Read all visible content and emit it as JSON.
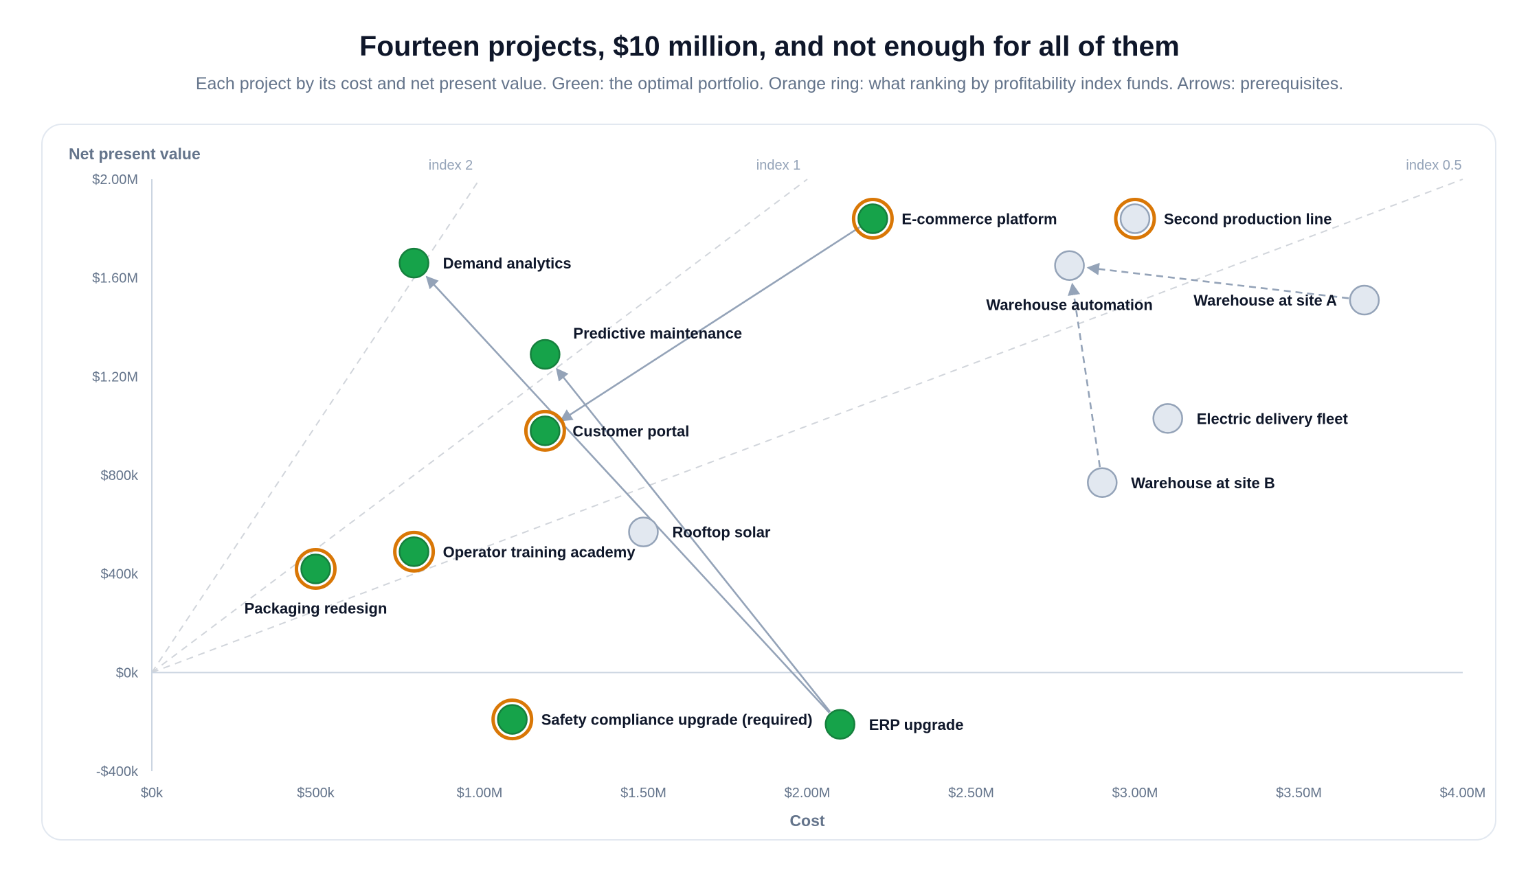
{
  "title": "Fourteen projects, $10 million, and not enough for all of them",
  "subtitle": "Each project by its cost and net present value. Green: the optimal portfolio. Orange ring: what ranking by profitability index funds. Arrows: prerequisites.",
  "colors": {
    "selected": "#16a34a",
    "selected_stroke": "#15803d",
    "unselected": "#e2e8f0",
    "unselected_stroke": "#94a3b8",
    "ring": "#d97706",
    "arrow": "#94a3b8",
    "axis_text": "#64748b",
    "guide": "#d1d5db"
  },
  "chart_data": {
    "type": "scatter",
    "xlabel": "Cost",
    "ylabel": "Net present value",
    "xlim": [
      0,
      4000000
    ],
    "ylim": [
      -400000,
      2000000
    ],
    "x_ticks": [
      {
        "value": 0,
        "label": "$0k"
      },
      {
        "value": 500000,
        "label": "$500k"
      },
      {
        "value": 1000000,
        "label": "$1.00M"
      },
      {
        "value": 1500000,
        "label": "$1.50M"
      },
      {
        "value": 2000000,
        "label": "$2.00M"
      },
      {
        "value": 2500000,
        "label": "$2.50M"
      },
      {
        "value": 3000000,
        "label": "$3.00M"
      },
      {
        "value": 3500000,
        "label": "$3.50M"
      },
      {
        "value": 4000000,
        "label": "$4.00M"
      }
    ],
    "y_ticks": [
      {
        "value": -400000,
        "label": "-$400k"
      },
      {
        "value": 0,
        "label": "$0k"
      },
      {
        "value": 400000,
        "label": "$400k"
      },
      {
        "value": 800000,
        "label": "$800k"
      },
      {
        "value": 1200000,
        "label": "$1.20M"
      },
      {
        "value": 1600000,
        "label": "$1.60M"
      },
      {
        "value": 2000000,
        "label": "$2.00M"
      }
    ],
    "index_lines": [
      {
        "ratio": 2,
        "label": "index 2"
      },
      {
        "ratio": 1,
        "label": "index 1"
      },
      {
        "ratio": 0.5,
        "label": "index 0.5"
      }
    ],
    "projects": [
      {
        "id": "packaging",
        "name": "Packaging redesign",
        "cost": 500000,
        "npv": 420000,
        "optimal": true,
        "pi_funded": true,
        "label_pos": "below"
      },
      {
        "id": "training",
        "name": "Operator training academy",
        "cost": 800000,
        "npv": 490000,
        "optimal": true,
        "pi_funded": true,
        "label_pos": "right"
      },
      {
        "id": "demand",
        "name": "Demand analytics",
        "cost": 800000,
        "npv": 1660000,
        "optimal": true,
        "pi_funded": false,
        "label_pos": "right"
      },
      {
        "id": "safety",
        "name": "Safety compliance upgrade (required)",
        "cost": 1100000,
        "npv": -190000,
        "optimal": true,
        "pi_funded": true,
        "label_pos": "right"
      },
      {
        "id": "predictive",
        "name": "Predictive maintenance",
        "cost": 1200000,
        "npv": 1290000,
        "optimal": true,
        "pi_funded": false,
        "label_pos": "above-right"
      },
      {
        "id": "portal",
        "name": "Customer portal",
        "cost": 1200000,
        "npv": 980000,
        "optimal": true,
        "pi_funded": true,
        "label_pos": "right-near"
      },
      {
        "id": "solar",
        "name": "Rooftop solar",
        "cost": 1500000,
        "npv": 570000,
        "optimal": false,
        "pi_funded": false,
        "label_pos": "right"
      },
      {
        "id": "erp",
        "name": "ERP upgrade",
        "cost": 2100000,
        "npv": -210000,
        "optimal": true,
        "pi_funded": false,
        "label_pos": "right"
      },
      {
        "id": "ecommerce",
        "name": "E-commerce platform",
        "cost": 2200000,
        "npv": 1840000,
        "optimal": true,
        "pi_funded": true,
        "label_pos": "right"
      },
      {
        "id": "automation",
        "name": "Warehouse automation",
        "cost": 2800000,
        "npv": 1650000,
        "optimal": false,
        "pi_funded": false,
        "label_pos": "below"
      },
      {
        "id": "wh_b",
        "name": "Warehouse at site B",
        "cost": 2900000,
        "npv": 770000,
        "optimal": false,
        "pi_funded": false,
        "label_pos": "right"
      },
      {
        "id": "second_line",
        "name": "Second production line",
        "cost": 3000000,
        "npv": 1840000,
        "optimal": false,
        "pi_funded": true,
        "label_pos": "right"
      },
      {
        "id": "fleet",
        "name": "Electric delivery fleet",
        "cost": 3100000,
        "npv": 1030000,
        "optimal": false,
        "pi_funded": false,
        "label_pos": "right"
      },
      {
        "id": "wh_a",
        "name": "Warehouse at site A",
        "cost": 3700000,
        "npv": 1510000,
        "optimal": false,
        "pi_funded": false,
        "label_pos": "left"
      }
    ],
    "prerequisites": [
      {
        "from": "erp",
        "to": "demand",
        "style": "solid"
      },
      {
        "from": "erp",
        "to": "predictive",
        "style": "solid"
      },
      {
        "from": "ecommerce",
        "to": "portal",
        "style": "solid"
      },
      {
        "from": "wh_a",
        "to": "automation",
        "style": "dashed"
      },
      {
        "from": "wh_b",
        "to": "automation",
        "style": "dashed"
      }
    ]
  }
}
